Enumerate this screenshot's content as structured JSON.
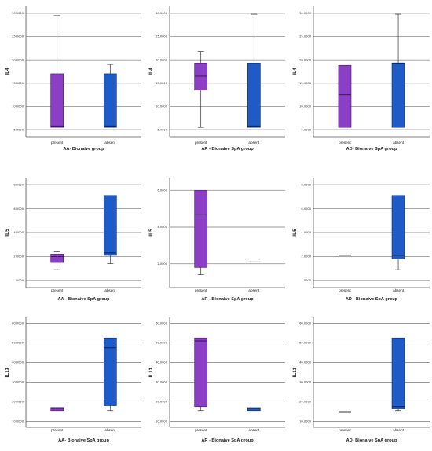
{
  "chart_data": [
    {
      "type": "box",
      "title": "AA- Bionaive group",
      "ylabel": "IL4",
      "yticks": [
        {
          "v": 5,
          "label": "5.0000"
        },
        {
          "v": 10,
          "label": "10.0000"
        },
        {
          "v": 15,
          "label": "15.0000"
        },
        {
          "v": 20,
          "label": "20.0000"
        },
        {
          "v": 25,
          "label": "25.0000"
        },
        {
          "v": 30,
          "label": "30.0000"
        }
      ],
      "ylim": [
        3.5,
        31.5
      ],
      "categories": [
        "present",
        "absent"
      ],
      "boxes": [
        {
          "category": "present",
          "color": "#8b3fc4",
          "min": 5.5,
          "q1": 5.5,
          "median": 5.8,
          "q3": 17.0,
          "max": 29.5
        },
        {
          "category": "absent",
          "color": "#1f5bc6",
          "min": 5.5,
          "q1": 5.5,
          "median": 5.8,
          "q3": 17.0,
          "max": 19.0
        }
      ]
    },
    {
      "type": "box",
      "title": "AR - Bionaive SpA group",
      "ylabel": "IL4",
      "yticks": [
        {
          "v": 5,
          "label": "5.0000"
        },
        {
          "v": 10,
          "label": "10.0000"
        },
        {
          "v": 15,
          "label": "15.0000"
        },
        {
          "v": 20,
          "label": "20.0000"
        },
        {
          "v": 25,
          "label": "25.0000"
        },
        {
          "v": 30,
          "label": "30.0000"
        }
      ],
      "ylim": [
        3.5,
        31.5
      ],
      "categories": [
        "present",
        "absent"
      ],
      "boxes": [
        {
          "category": "present",
          "color": "#8b3fc4",
          "min": 5.5,
          "q1": 13.5,
          "median": 16.5,
          "q3": 19.3,
          "max": 21.8
        },
        {
          "category": "absent",
          "color": "#1f5bc6",
          "min": 5.5,
          "q1": 5.5,
          "median": 5.8,
          "q3": 19.3,
          "max": 29.8
        }
      ]
    },
    {
      "type": "box",
      "title": "AD- Bionaive SpA group",
      "ylabel": "IL4",
      "yticks": [
        {
          "v": 5,
          "label": "5.0000"
        },
        {
          "v": 10,
          "label": "10.0000"
        },
        {
          "v": 15,
          "label": "15.0000"
        },
        {
          "v": 20,
          "label": "20.0000"
        },
        {
          "v": 25,
          "label": "25.0000"
        },
        {
          "v": 30,
          "label": "30.0000"
        }
      ],
      "ylim": [
        3.5,
        31.5
      ],
      "categories": [
        "present",
        "absent"
      ],
      "boxes": [
        {
          "category": "present",
          "color": "#8b3fc4",
          "min": 5.5,
          "q1": 5.5,
          "median": 12.5,
          "q3": 18.8,
          "max": 18.8
        },
        {
          "category": "absent",
          "color": "#1f5bc6",
          "min": 5.5,
          "q1": 5.5,
          "median": 19.3,
          "q3": 19.3,
          "max": 29.8
        }
      ]
    },
    {
      "type": "box",
      "title": "AA - Bionaive SpA group",
      "ylabel": "IL5",
      "yticks": [
        {
          "v": 0,
          "label": ".0000"
        },
        {
          "v": 2,
          "label": "2.0000"
        },
        {
          "v": 4,
          "label": "4.0000"
        },
        {
          "v": 6,
          "label": "6.0000"
        },
        {
          "v": 8,
          "label": "8.0000"
        }
      ],
      "ylim": [
        -0.6,
        8.6
      ],
      "categories": [
        "present",
        "absent"
      ],
      "boxes": [
        {
          "category": "present",
          "color": "#8b3fc4",
          "min": 0.9,
          "q1": 1.5,
          "median": 2.0,
          "q3": 2.2,
          "max": 2.4
        },
        {
          "category": "absent",
          "color": "#1f5bc6",
          "min": 1.4,
          "q1": 2.1,
          "median": 2.3,
          "q3": 7.1,
          "max": 7.1
        }
      ]
    },
    {
      "type": "box",
      "title": "AR - Bionaive SpA group",
      "ylabel": "IL5",
      "yticks": [
        {
          "v": 2,
          "label": "2.0000"
        },
        {
          "v": 4,
          "label": "4.0000"
        },
        {
          "v": 6,
          "label": "6.0000"
        }
      ],
      "ylim": [
        0.7,
        6.7
      ],
      "categories": [
        "present",
        "absent"
      ],
      "boxes": [
        {
          "category": "present",
          "color": "#8b3fc4",
          "min": 1.4,
          "q1": 1.8,
          "median": 4.7,
          "q3": 6.0,
          "max": 6.0
        },
        {
          "category": "absent",
          "color": "#1f5bc6",
          "min": 2.1,
          "q1": 2.1,
          "median": 2.1,
          "q3": 2.1,
          "max": 2.1
        }
      ]
    },
    {
      "type": "box",
      "title": "AD - Bionaive SpA group",
      "ylabel": "IL5",
      "yticks": [
        {
          "v": 0,
          "label": ".0000"
        },
        {
          "v": 2,
          "label": "2.0000"
        },
        {
          "v": 4,
          "label": "4.0000"
        },
        {
          "v": 6,
          "label": "6.0000"
        },
        {
          "v": 8,
          "label": "8.0000"
        }
      ],
      "ylim": [
        -0.6,
        8.6
      ],
      "categories": [
        "present",
        "absent"
      ],
      "boxes": [
        {
          "category": "present",
          "color": "#8b3fc4",
          "min": 2.1,
          "q1": 2.1,
          "median": 2.1,
          "q3": 2.1,
          "max": 2.1
        },
        {
          "category": "absent",
          "color": "#1f5bc6",
          "min": 0.9,
          "q1": 1.8,
          "median": 2.1,
          "q3": 7.1,
          "max": 7.1
        }
      ]
    },
    {
      "type": "box",
      "title": "AA- Bionaive SpA group",
      "ylabel": "IL13",
      "yticks": [
        {
          "v": 10,
          "label": "10.0000"
        },
        {
          "v": 20,
          "label": "20.0000"
        },
        {
          "v": 30,
          "label": "30.0000"
        },
        {
          "v": 40,
          "label": "40.0000"
        },
        {
          "v": 50,
          "label": "50.0000"
        },
        {
          "v": 60,
          "label": "60.0000"
        }
      ],
      "ylim": [
        7,
        63
      ],
      "categories": [
        "present",
        "absent"
      ],
      "boxes": [
        {
          "category": "present",
          "color": "#8b3fc4",
          "min": 15.5,
          "q1": 15.5,
          "median": 17.0,
          "q3": 17.0,
          "max": 17.0
        },
        {
          "category": "absent",
          "color": "#1f5bc6",
          "min": 15.5,
          "q1": 18.0,
          "median": 47.5,
          "q3": 52.5,
          "max": 52.5
        }
      ]
    },
    {
      "type": "box",
      "title": "AR - Bionaive SpA group",
      "ylabel": "IL13",
      "yticks": [
        {
          "v": 10,
          "label": "10.0000"
        },
        {
          "v": 20,
          "label": "20.0000"
        },
        {
          "v": 30,
          "label": "30.0000"
        },
        {
          "v": 40,
          "label": "40.0000"
        },
        {
          "v": 50,
          "label": "50.0000"
        },
        {
          "v": 60,
          "label": "60.0000"
        }
      ],
      "ylim": [
        7,
        63
      ],
      "categories": [
        "present",
        "absent"
      ],
      "boxes": [
        {
          "category": "present",
          "color": "#8b3fc4",
          "min": 15.5,
          "q1": 17.5,
          "median": 51.0,
          "q3": 52.5,
          "max": 52.5
        },
        {
          "category": "absent",
          "color": "#1f5bc6",
          "min": 15.5,
          "q1": 15.5,
          "median": 16.5,
          "q3": 17.0,
          "max": 17.0
        }
      ]
    },
    {
      "type": "box",
      "title": "AD- Bionaive SpA group",
      "ylabel": "IL13",
      "yticks": [
        {
          "v": 10,
          "label": "10.0000"
        },
        {
          "v": 20,
          "label": "20.0000"
        },
        {
          "v": 30,
          "label": "30.0000"
        },
        {
          "v": 40,
          "label": "40.0000"
        },
        {
          "v": 50,
          "label": "50.0000"
        },
        {
          "v": 60,
          "label": "60.0000"
        }
      ],
      "ylim": [
        7,
        63
      ],
      "categories": [
        "present",
        "absent"
      ],
      "boxes": [
        {
          "category": "present",
          "color": "#1f5bc6",
          "min": 15.0,
          "q1": 15.0,
          "median": 15.0,
          "q3": 15.0,
          "max": 15.0
        },
        {
          "category": "absent",
          "color": "#1f5bc6",
          "min": 15.5,
          "q1": 16.5,
          "median": 17.5,
          "q3": 52.5,
          "max": 52.5
        }
      ]
    }
  ]
}
